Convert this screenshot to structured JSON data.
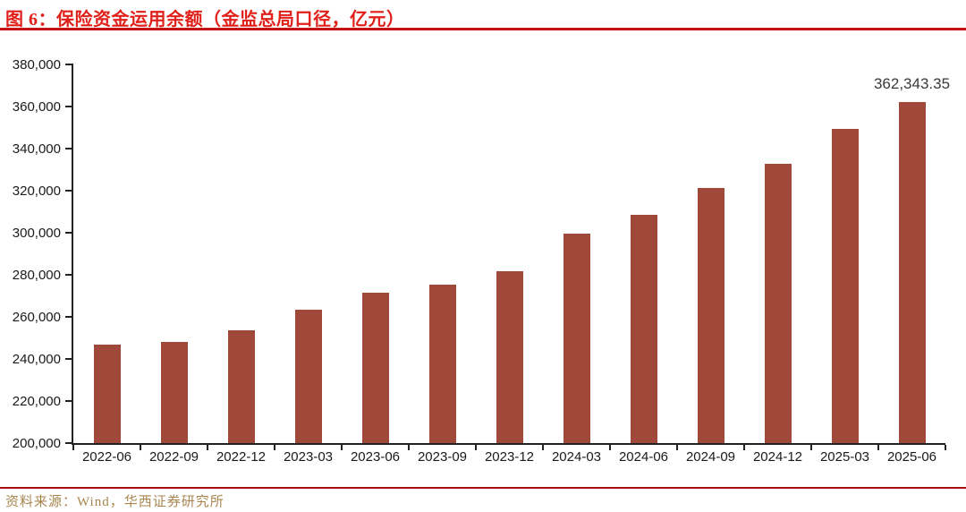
{
  "header": {
    "figure_title": "图 6：保险资金运用余额（金监总局口径，亿元）"
  },
  "footer": {
    "source": "资料来源：Wind，华西证券研究所"
  },
  "colors": {
    "title_red": "#E0201A",
    "rule_red": "#C41414",
    "footer_rule_red": "#A51010",
    "bar_fill": "#A0483A",
    "axis_line": "#222222",
    "axis_text": "#1a1a1a",
    "annotation_text": "#3a3a3a",
    "source_gold": "#A8854F"
  },
  "chart_data": {
    "type": "bar",
    "title": "保险资金运用余额（金监总局口径，亿元）",
    "xlabel": "",
    "ylabel": "",
    "categories": [
      "2022-06",
      "2022-09",
      "2022-12",
      "2023-03",
      "2023-06",
      "2023-09",
      "2023-12",
      "2024-03",
      "2024-06",
      "2024-09",
      "2024-12",
      "2025-03",
      "2025-06"
    ],
    "values": [
      247000,
      248100,
      253500,
      263400,
      271600,
      275200,
      281600,
      299400,
      308700,
      321400,
      332600,
      349300,
      362343.35
    ],
    "ylim": [
      200000,
      380000
    ],
    "yticks": [
      200000,
      220000,
      240000,
      260000,
      280000,
      300000,
      320000,
      340000,
      360000,
      380000
    ],
    "grid": false,
    "legend": "none",
    "annotation": {
      "category": "2025-06",
      "index": 12,
      "text": "362,343.35"
    }
  }
}
